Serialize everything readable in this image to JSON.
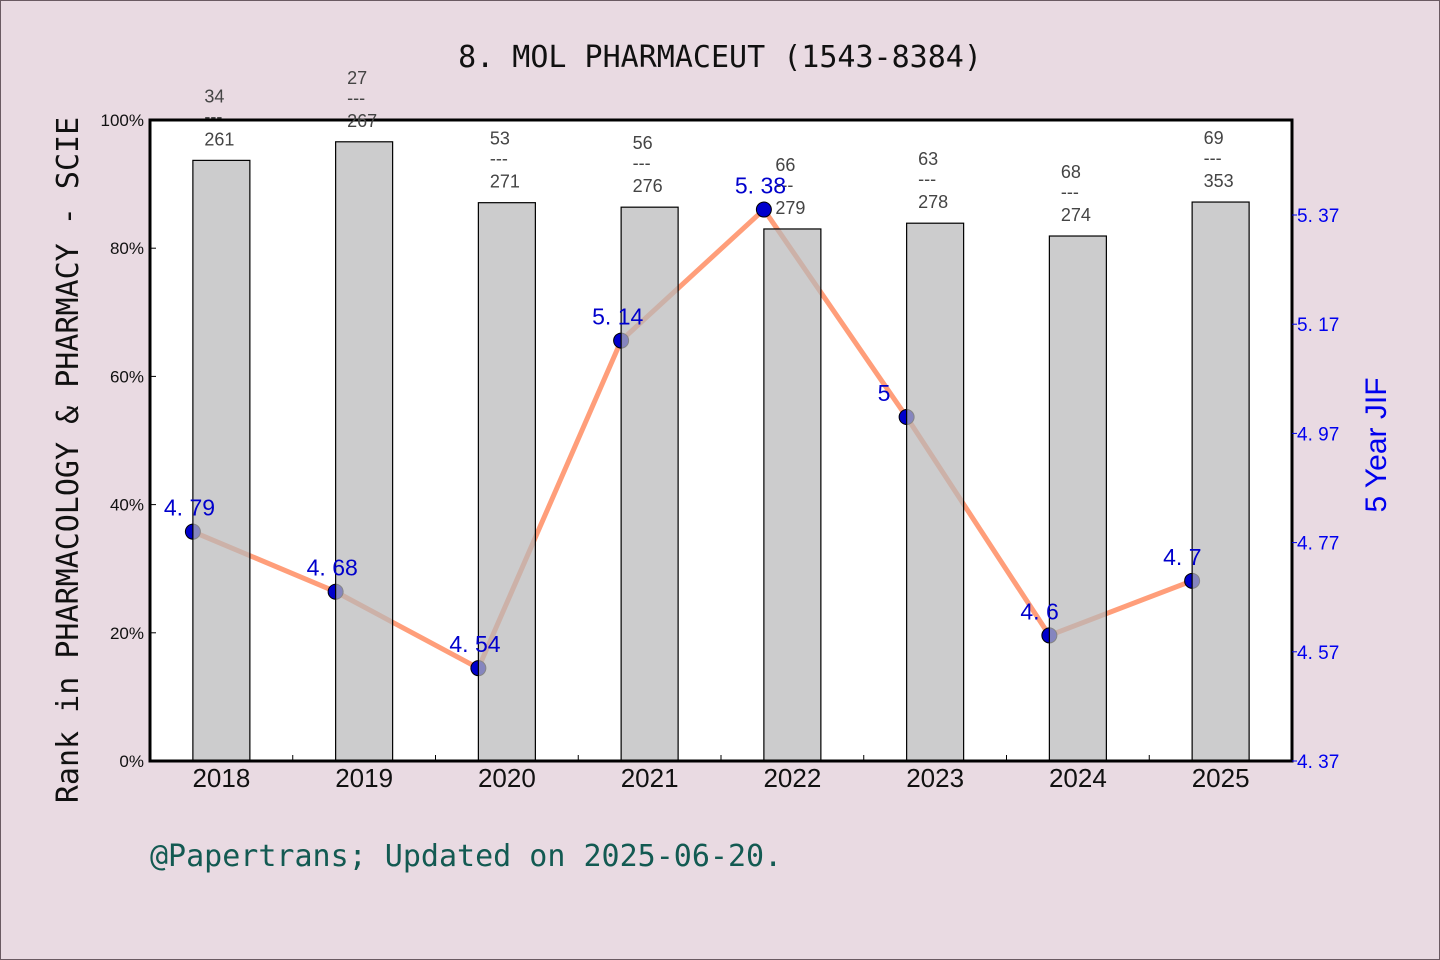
{
  "title": "8.  MOL PHARMACEUT (1543-8384)",
  "footer": "@Papertrans; Updated on 2025-06-20.",
  "colors": {
    "background": "#e9dae2",
    "plot_bg": "#ffffff",
    "bar": "#b8b9ba",
    "line": "#ff9e7a",
    "marker": "#0000cc",
    "right_axis": "#0000ee",
    "footer": "#135a52"
  },
  "chart_data": {
    "type": "bar+line",
    "title": "8.  MOL PHARMACEUT (1543-8384)",
    "categories": [
      "2018",
      "2019",
      "2020",
      "2021",
      "2022",
      "2023",
      "2024",
      "2025"
    ],
    "xlabel": "",
    "ylabel": "Rank in PHARMACOLOGY & PHARMACY - SCIE",
    "ylabel_right": "5 Year JIF",
    "ylim": [
      0,
      100
    ],
    "yticks": [
      "0%",
      "20%",
      "40%",
      "60%",
      "80%",
      "100%"
    ],
    "ylim_right": [
      4.37,
      5.54
    ],
    "yticks_right": [
      "4. 37",
      "4. 57",
      "4. 77",
      "4. 97",
      "5. 17",
      "5. 37"
    ],
    "grid": false,
    "series": [
      {
        "name": "Rank percentile",
        "type": "bar",
        "values": [
          93.7,
          96.6,
          87.1,
          86.4,
          83.0,
          83.9,
          81.9,
          87.2
        ],
        "labels": [
          {
            "rank": "34",
            "total": "261"
          },
          {
            "rank": "27",
            "total": "267"
          },
          {
            "rank": "53",
            "total": "271"
          },
          {
            "rank": "56",
            "total": "276"
          },
          {
            "rank": "66",
            "total": "279"
          },
          {
            "rank": "63",
            "total": "278"
          },
          {
            "rank": "68",
            "total": "274"
          },
          {
            "rank": "69",
            "total": "353"
          }
        ]
      },
      {
        "name": "5 Year JIF",
        "type": "line",
        "axis": "right",
        "values": [
          4.79,
          4.68,
          4.54,
          5.14,
          5.38,
          5.0,
          4.6,
          4.7
        ],
        "labels": [
          "4. 79",
          "4. 68",
          "4. 54",
          "5. 14",
          "5. 38",
          "5",
          "4. 6",
          "4. 7"
        ]
      }
    ]
  }
}
